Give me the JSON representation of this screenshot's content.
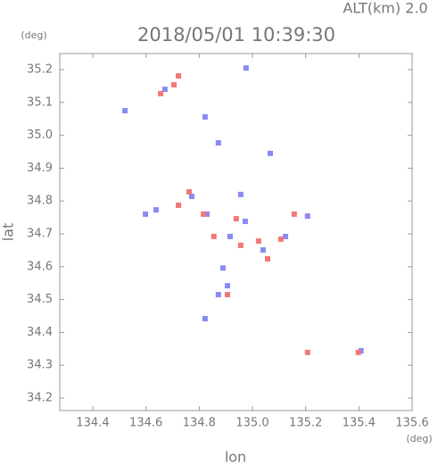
{
  "chart_data": {
    "type": "scatter",
    "title": "2018/05/01 10:39:30",
    "subtitle": "ALT(km) 2.0",
    "x_label": "lon",
    "y_label": "lat",
    "x_unit": "(deg)",
    "y_unit": "(deg)",
    "xlim": [
      134.276,
      135.6
    ],
    "ylim": [
      34.162,
      35.249
    ],
    "xticks": [
      134.4,
      134.6,
      134.8,
      {
        "value": 135,
        "label": "135.0"
      },
      135.2,
      135.4,
      135.6
    ],
    "yticks": [
      34.2,
      34.3,
      34.4,
      34.5,
      34.6,
      34.7,
      34.8,
      34.9,
      {
        "value": 35,
        "label": "35.0"
      },
      35.1,
      35.2
    ],
    "series": [
      {
        "color": "#8a8af5",
        "x": [
          134.976,
          134.671,
          134.822,
          134.872,
          135.067,
          134.956,
          134.598,
          134.772,
          134.829,
          134.973,
          135.207,
          134.872,
          134.906,
          134.822,
          135.04,
          134.916,
          135.124,
          134.521,
          135.408,
          134.638,
          134.889
        ],
        "values": [
          35.205,
          35.14,
          35.056,
          34.977,
          34.945,
          34.82,
          34.76,
          34.814,
          34.76,
          34.738,
          34.754,
          34.515,
          34.542,
          34.442,
          34.651,
          34.692,
          34.692,
          35.075,
          34.344,
          34.773,
          34.596
        ]
      },
      {
        "color": "#f27878",
        "x": [
          134.722,
          134.655,
          134.722,
          134.939,
          135.023,
          134.855,
          135.207,
          135.398,
          135.157,
          134.956,
          134.762,
          134.816,
          134.906,
          135.057,
          135.107,
          134.705
        ],
        "values": [
          35.181,
          35.127,
          34.787,
          34.746,
          34.678,
          34.692,
          34.339,
          34.339,
          34.76,
          34.665,
          34.828,
          34.76,
          34.515,
          34.624,
          34.684,
          35.154
        ]
      }
    ]
  }
}
